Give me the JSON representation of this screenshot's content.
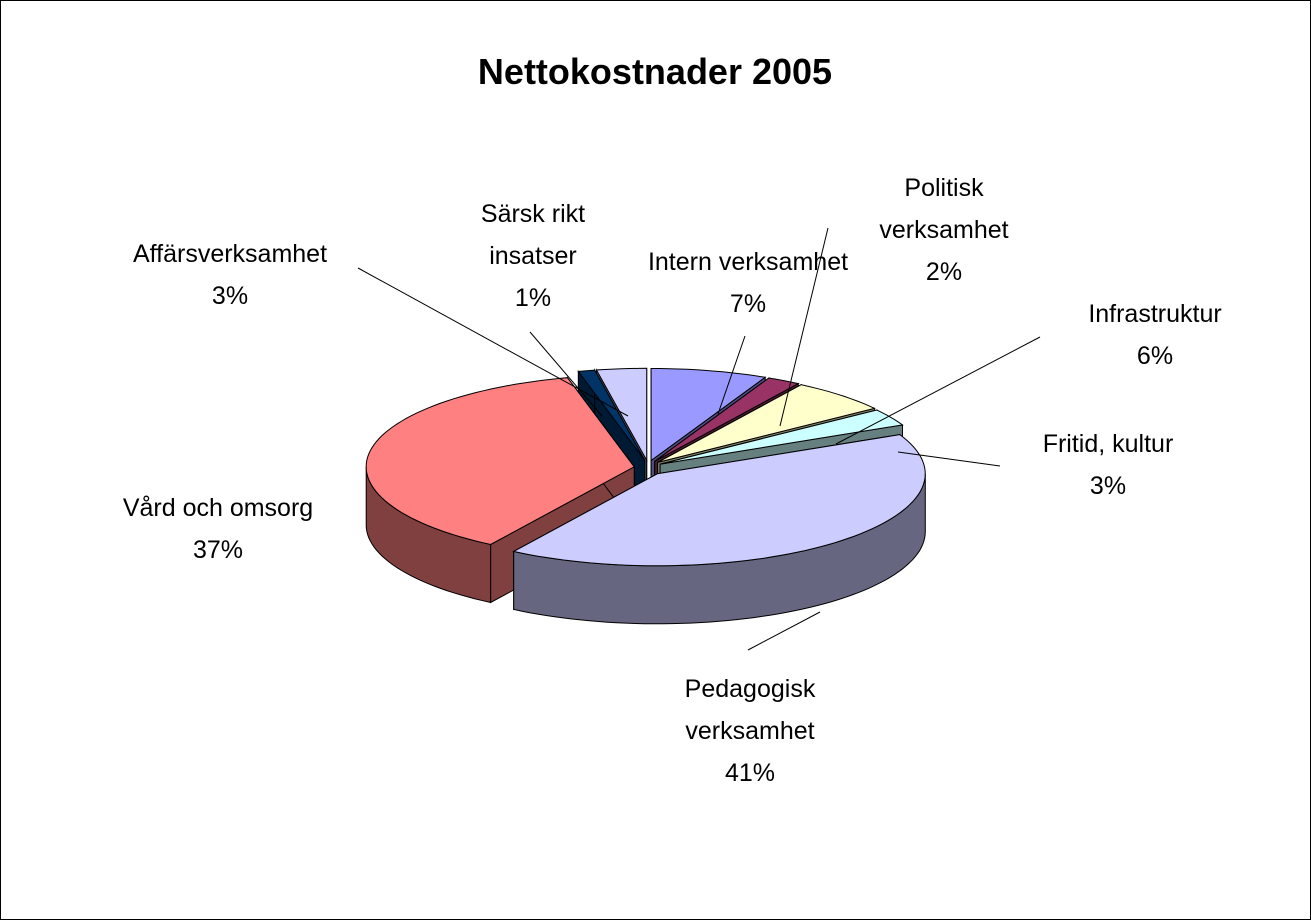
{
  "chart_data": {
    "type": "pie3d",
    "title": "Nettokostnader 2005",
    "categories": [
      "Intern verksamhet",
      "Politisk verksamhet",
      "Infrastruktur",
      "Fritid, kultur",
      "Pedagogisk verksamhet",
      "Vård och omsorg",
      "Särsk rikt insatser",
      "Affärsverksamhet"
    ],
    "values": [
      7,
      2,
      6,
      3,
      41,
      37,
      1,
      3
    ],
    "value_labels": [
      "7%",
      "2%",
      "6%",
      "3%",
      "41%",
      "37%",
      "1%",
      "3%"
    ],
    "colors": [
      "#9999ff",
      "#993366",
      "#ffffcc",
      "#ccffff",
      "#ccccff",
      "#ff8080",
      "#003366",
      "#ccccff"
    ]
  }
}
